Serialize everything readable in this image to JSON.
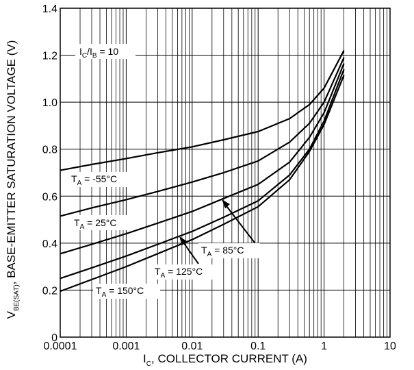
{
  "chart_data": {
    "type": "line",
    "x_scale": "log",
    "xlim": [
      0.0001,
      10
    ],
    "ylim": [
      0,
      1.4
    ],
    "grid": true,
    "x_ticks": [
      "0.0001",
      "0.001",
      "0.01",
      "0.1",
      "1",
      "10"
    ],
    "x_tick_values": [
      0.0001,
      0.001,
      0.01,
      0.1,
      1,
      10
    ],
    "y_ticks": [
      "0",
      "0.2",
      "0.4",
      "0.6",
      "0.8",
      "1.0",
      "1.2",
      "1.4"
    ],
    "y_tick_values": [
      0,
      0.2,
      0.4,
      0.6,
      0.8,
      1.0,
      1.2,
      1.4
    ],
    "xlabel_main": "I",
    "xlabel_sub": "C",
    "xlabel_rest": ", COLLECTOR CURRENT (A)",
    "ylabel_main": "V",
    "ylabel_sub": "BE(SAT)",
    "ylabel_rest": ", BASE-EMITTER SATURATION VOLTAGE (V)",
    "condition": {
      "pre": "I",
      "sub1": "C",
      "mid": "/I",
      "sub2": "B",
      "post": " = 10"
    },
    "series": [
      {
        "label_pre": "T",
        "label_sub": "A",
        "label_post": " = -55°C",
        "x": [
          0.0001,
          0.0003,
          0.001,
          0.003,
          0.01,
          0.03,
          0.1,
          0.3,
          0.6,
          1,
          2
        ],
        "y": [
          0.71,
          0.735,
          0.76,
          0.785,
          0.81,
          0.84,
          0.875,
          0.93,
          0.99,
          1.06,
          1.22
        ]
      },
      {
        "label_pre": "T",
        "label_sub": "A",
        "label_post": " = 25°C",
        "x": [
          0.0001,
          0.0003,
          0.001,
          0.003,
          0.01,
          0.03,
          0.1,
          0.3,
          0.6,
          1,
          2
        ],
        "y": [
          0.515,
          0.55,
          0.585,
          0.62,
          0.66,
          0.7,
          0.75,
          0.83,
          0.91,
          1.0,
          1.19
        ]
      },
      {
        "label_pre": "T",
        "label_sub": "A",
        "label_post": " = 85°C",
        "x": [
          0.0001,
          0.0003,
          0.001,
          0.003,
          0.01,
          0.03,
          0.1,
          0.3,
          0.6,
          1,
          2
        ],
        "y": [
          0.355,
          0.395,
          0.44,
          0.485,
          0.535,
          0.59,
          0.65,
          0.745,
          0.85,
          0.955,
          1.165
        ]
      },
      {
        "label_pre": "T",
        "label_sub": "A",
        "label_post": " = 125°C",
        "x": [
          0.0001,
          0.0003,
          0.001,
          0.003,
          0.01,
          0.03,
          0.1,
          0.3,
          0.6,
          1,
          2
        ],
        "y": [
          0.25,
          0.295,
          0.345,
          0.395,
          0.45,
          0.51,
          0.58,
          0.69,
          0.8,
          0.92,
          1.14
        ]
      },
      {
        "label_pre": "T",
        "label_sub": "A",
        "label_post": " = 150°C",
        "x": [
          0.0001,
          0.0003,
          0.001,
          0.003,
          0.01,
          0.03,
          0.1,
          0.3,
          0.6,
          1,
          2
        ],
        "y": [
          0.195,
          0.245,
          0.3,
          0.355,
          0.415,
          0.48,
          0.555,
          0.67,
          0.79,
          0.905,
          1.115
        ]
      }
    ]
  }
}
